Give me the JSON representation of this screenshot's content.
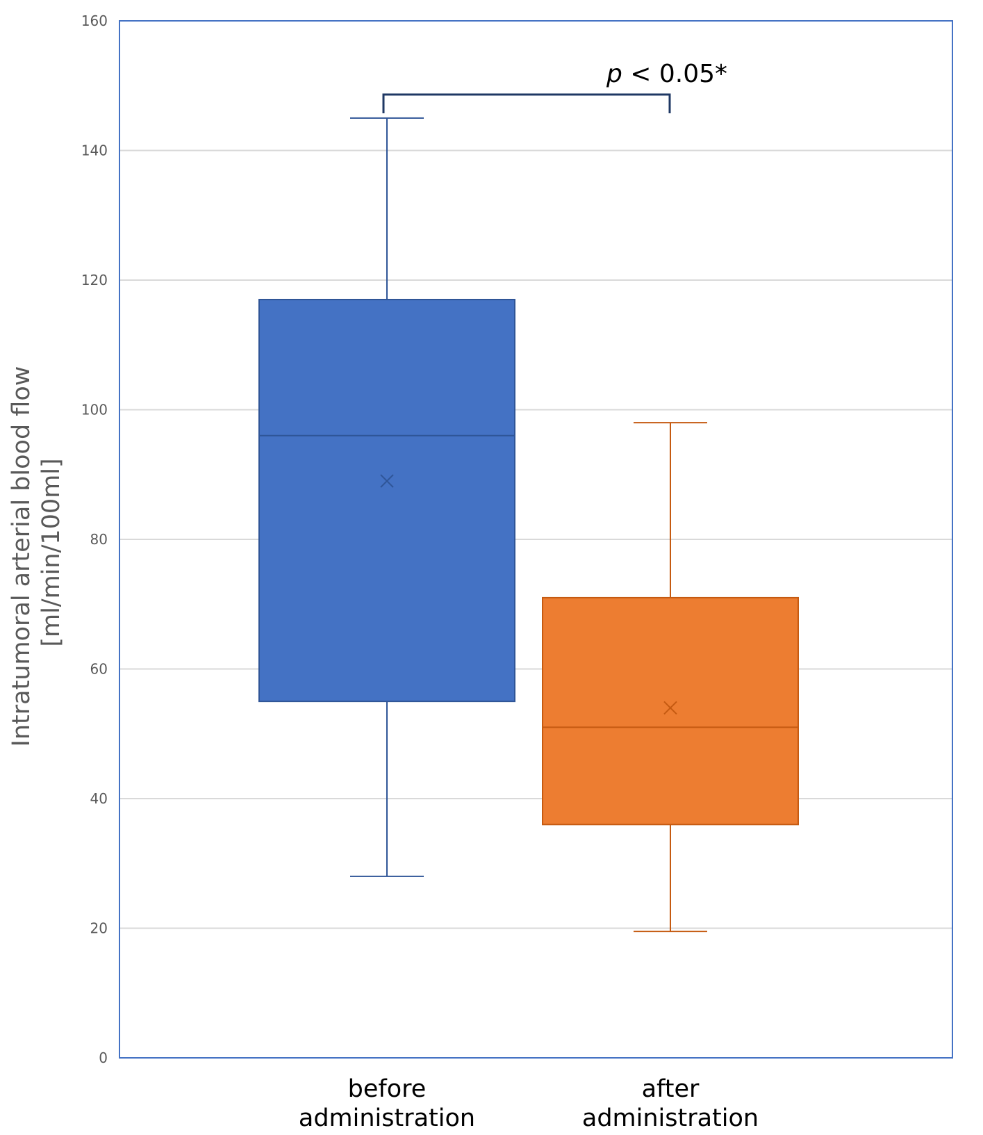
{
  "chart_data": {
    "type": "box",
    "title": "",
    "xlabel": "",
    "ylabel_lines": [
      "Intratumoral arterial blood flow",
      "[ml/min/100ml]"
    ],
    "ylim": [
      0,
      160
    ],
    "yticks": [
      0,
      20,
      40,
      60,
      80,
      100,
      120,
      140,
      160
    ],
    "grid": true,
    "categories": [
      {
        "label_lines": [
          "before",
          "administration"
        ],
        "color": "#4472C4",
        "edge": "#2F5597",
        "whisker": "#2F5597",
        "min": 28,
        "q1": 55,
        "median": 96,
        "q3": 117,
        "max": 145,
        "mean": 89
      },
      {
        "label_lines": [
          "after",
          "administration"
        ],
        "color": "#ED7D31",
        "edge": "#C55A11",
        "whisker": "#C55A11",
        "min": 19.5,
        "q1": 36,
        "median": 51,
        "q3": 71,
        "max": 98,
        "mean": 54
      }
    ],
    "annotation": {
      "p_symbol": "p",
      "text": " < 0.05*",
      "between": [
        0,
        1
      ]
    }
  },
  "colors": {
    "axis": "#4472C4",
    "grid": "#D9D9D9",
    "bracket": "#1F3864"
  }
}
